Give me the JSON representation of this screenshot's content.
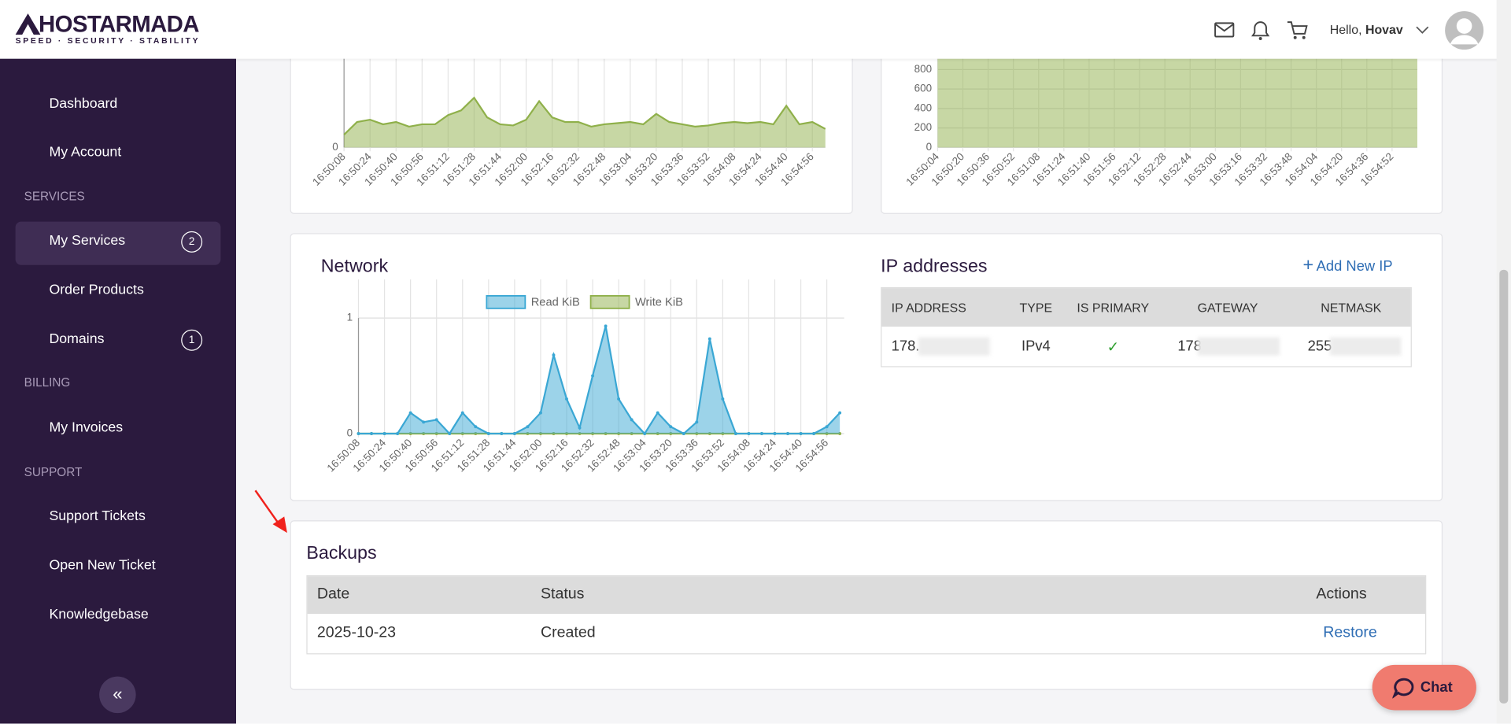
{
  "header": {
    "logo": "HOSTARMADA",
    "tagline": "SPEED · SECURITY · STABILITY",
    "greeting": "Hello,",
    "user": "Hovav"
  },
  "sidebar": {
    "items": [
      {
        "label": "Dashboard"
      },
      {
        "label": "My Account"
      },
      {
        "section": "SERVICES"
      },
      {
        "label": "My Services",
        "badge": 2
      },
      {
        "label": "Order Products"
      },
      {
        "label": "Domains",
        "badge": 1
      },
      {
        "section": "BILLING"
      },
      {
        "label": "My Invoices"
      },
      {
        "section": "SUPPORT"
      },
      {
        "label": "Support Tickets"
      },
      {
        "label": "Open New Ticket"
      },
      {
        "label": "Knowledgebase"
      }
    ]
  },
  "chart_data": [
    {
      "type": "area",
      "color": "#8fb04a",
      "ylim": [
        0,
        100
      ],
      "yticks": [
        0
      ],
      "grid": true,
      "categories": [
        "16:50:08",
        null,
        "16:50:24",
        null,
        "16:50:40",
        null,
        "16:50:56",
        null,
        "16:51:12",
        null,
        "16:51:28",
        null,
        "16:51:44",
        null,
        "16:52:00",
        null,
        "16:52:16",
        null,
        "16:52:32",
        null,
        "16:52:48",
        null,
        "16:53:04",
        null,
        "16:53:20",
        null,
        "16:53:36",
        null,
        "16:53:52",
        null,
        "16:54:08",
        null,
        "16:54:24",
        null,
        "16:54:40",
        null,
        "16:54:56",
        null
      ],
      "values": [
        11,
        22,
        24,
        20,
        22,
        18,
        20,
        20,
        28,
        32,
        43,
        26,
        20,
        19,
        24,
        40,
        26,
        22,
        22,
        18,
        20,
        21,
        22,
        20,
        29,
        22,
        20,
        18,
        19,
        21,
        22,
        21,
        22,
        20,
        36,
        20,
        22,
        16
      ]
    },
    {
      "type": "area",
      "color": "#8fb04a",
      "ylim": [
        0,
        1000
      ],
      "yticks": [
        0,
        200,
        400,
        600,
        800
      ],
      "grid": true,
      "categories": [
        "16:50:04",
        "16:50:20",
        "16:50:36",
        "16:50:52",
        "16:51:08",
        "16:51:24",
        "16:51:40",
        "16:51:56",
        "16:52:12",
        "16:52:28",
        "16:52:44",
        "16:53:00",
        "16:53:16",
        "16:53:32",
        "16:53:48",
        "16:54:04",
        "16:54:20",
        "16:54:36",
        "16:54:52",
        null
      ],
      "values": [
        1000,
        1000,
        1000,
        1000,
        1000,
        1000,
        1000,
        1000,
        1000,
        1000,
        1000,
        1000,
        1000,
        1000,
        1000,
        1000,
        1000,
        1000,
        1000,
        1000
      ]
    },
    {
      "type": "area",
      "title": "Network",
      "ylim": [
        0,
        1
      ],
      "yticks": [
        0,
        1
      ],
      "grid": true,
      "categories": [
        "16:50:08",
        null,
        "16:50:24",
        null,
        "16:50:40",
        null,
        "16:50:56",
        null,
        "16:51:12",
        null,
        "16:51:28",
        null,
        "16:51:44",
        null,
        "16:52:00",
        null,
        "16:52:16",
        null,
        "16:52:32",
        null,
        "16:52:48",
        null,
        "16:53:04",
        null,
        "16:53:20",
        null,
        "16:53:36",
        null,
        "16:53:52",
        null,
        "16:54:08",
        null,
        "16:54:24",
        null,
        "16:54:40",
        null,
        "16:54:56",
        null
      ],
      "series": [
        {
          "name": "Read KiB",
          "color": "#3aa7d4",
          "values": [
            0,
            0,
            0,
            0,
            0.18,
            0.1,
            0.12,
            0,
            0.18,
            0.06,
            0,
            0,
            0,
            0.06,
            0.18,
            0.68,
            0.3,
            0.05,
            0.5,
            0.93,
            0.3,
            0.12,
            0,
            0.18,
            0.06,
            0,
            0.1,
            0.82,
            0.3,
            0,
            0,
            0,
            0,
            0,
            0,
            0,
            0.06,
            0.18
          ]
        },
        {
          "name": "Write KiB",
          "color": "#8fb04a",
          "values": [
            0,
            0,
            0,
            0,
            0,
            0,
            0,
            0,
            0,
            0,
            0,
            0,
            0,
            0,
            0,
            0,
            0,
            0,
            0,
            0,
            0,
            0,
            0,
            0,
            0,
            0,
            0,
            0,
            0,
            0,
            0,
            0,
            0,
            0,
            0,
            0,
            0,
            0
          ]
        }
      ]
    }
  ],
  "ip_addresses": {
    "title": "IP addresses",
    "add": "Add New IP",
    "columns": [
      "IP ADDRESS",
      "TYPE",
      "IS PRIMARY",
      "GATEWAY",
      "NETMASK"
    ],
    "rows": [
      [
        "178.",
        "IPv4",
        "✓",
        "178",
        "255"
      ]
    ]
  },
  "backups": {
    "title": "Backups",
    "columns": [
      "Date",
      "Status",
      "Actions"
    ],
    "rows": [
      [
        "2025-10-23",
        "Created",
        "Restore"
      ]
    ]
  },
  "chat": "Chat"
}
